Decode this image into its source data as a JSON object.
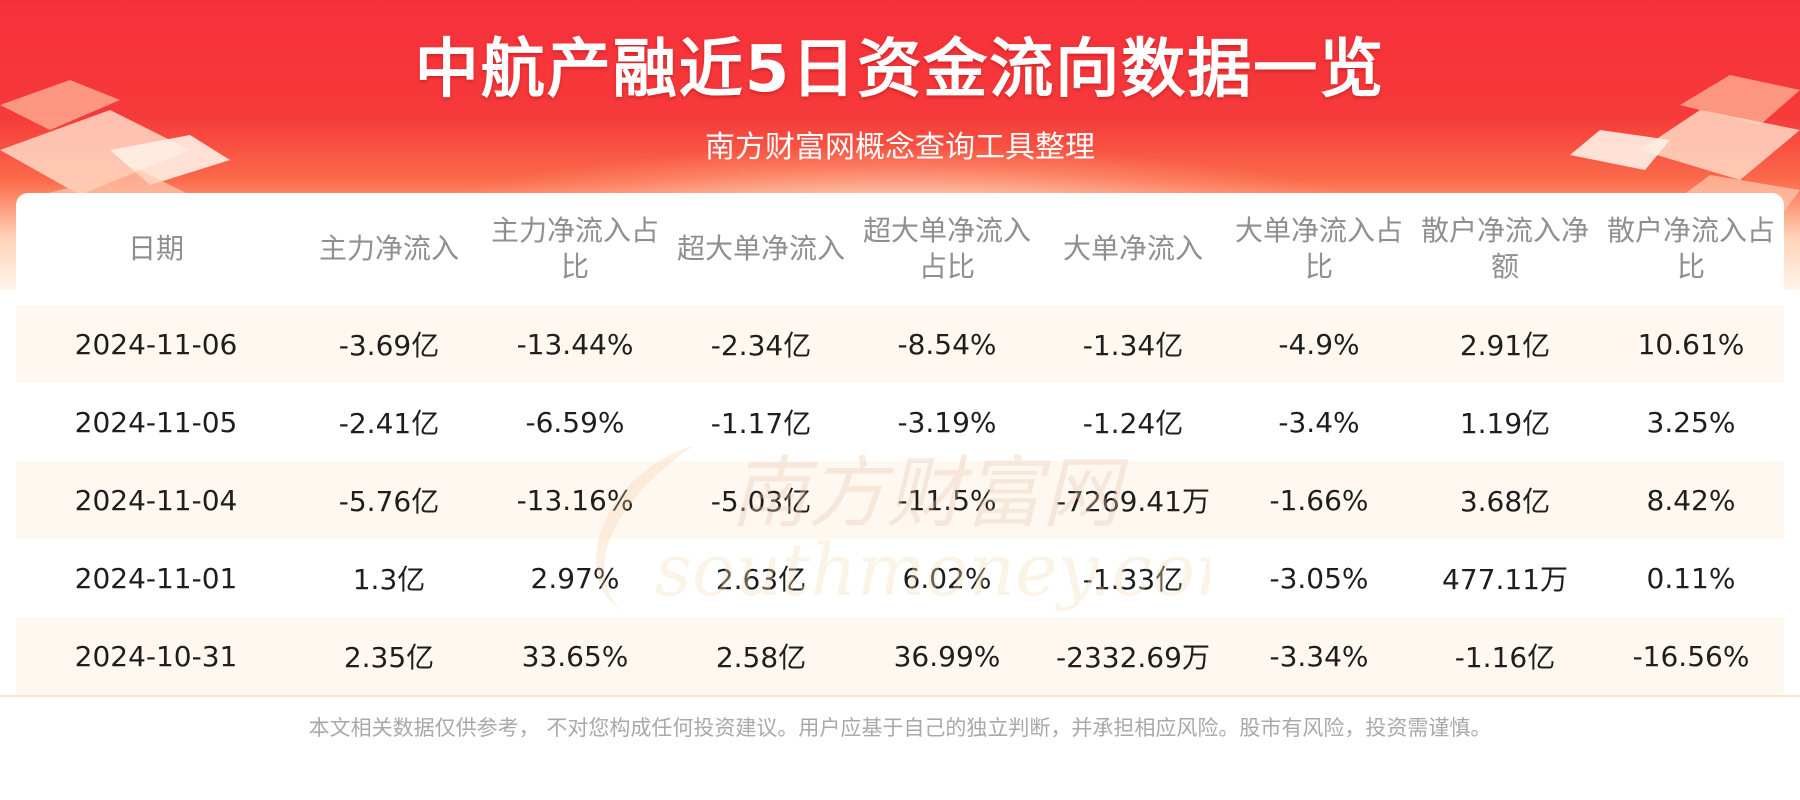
{
  "header": {
    "title": "中航产融近5日资金流向数据一览",
    "subtitle": "南方财富网概念查询工具整理"
  },
  "table": {
    "columns": [
      "日期",
      "主力净流入",
      "主力净流入占比",
      "超大单净流入",
      "超大单净流入占比",
      "大单净流入",
      "大单净流入占比",
      "散户净流入净额",
      "散户净流入占比"
    ],
    "rows": [
      [
        "2024-11-06",
        "-3.69亿",
        "-13.44%",
        "-2.34亿",
        "-8.54%",
        "-1.34亿",
        "-4.9%",
        "2.91亿",
        "10.61%"
      ],
      [
        "2024-11-05",
        "-2.41亿",
        "-6.59%",
        "-1.17亿",
        "-3.19%",
        "-1.24亿",
        "-3.4%",
        "1.19亿",
        "3.25%"
      ],
      [
        "2024-11-04",
        "-5.76亿",
        "-13.16%",
        "-5.03亿",
        "-11.5%",
        "-7269.41万",
        "-1.66%",
        "3.68亿",
        "8.42%"
      ],
      [
        "2024-11-01",
        "1.3亿",
        "2.97%",
        "2.63亿",
        "6.02%",
        "-1.33亿",
        "-3.05%",
        "477.11万",
        "0.11%"
      ],
      [
        "2024-10-31",
        "2.35亿",
        "33.65%",
        "2.58亿",
        "36.99%",
        "-2332.69万",
        "-3.34%",
        "-1.16亿",
        "-16.56%"
      ]
    ]
  },
  "watermark": {
    "cn": "南方财富网",
    "en": "southmoney.com"
  },
  "footer": {
    "disclaimer": "本文相关数据仅供参考， 不对您构成任何投资建议。用户应基于自己的独立判断，并承担相应风险。股市有风险，投资需谨慎。"
  }
}
